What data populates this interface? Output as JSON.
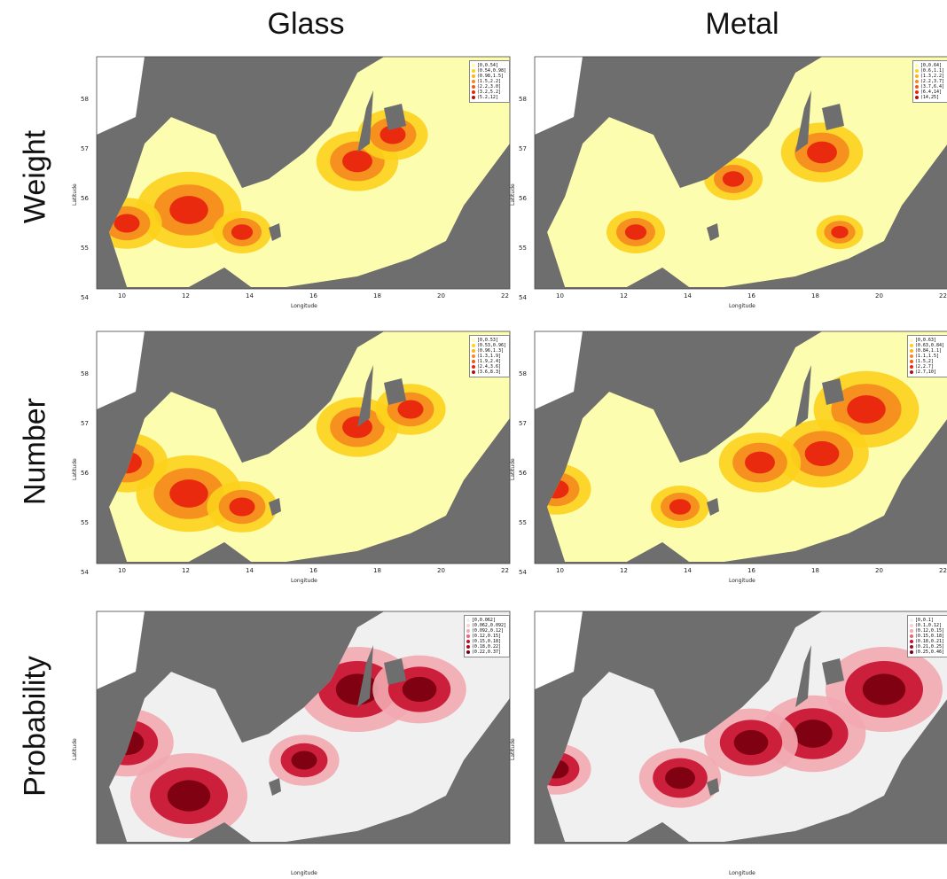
{
  "columns": {
    "glass": "Glass",
    "metal": "Metal"
  },
  "rows": {
    "weight": "Weight",
    "number": "Number",
    "probability": "Probability"
  },
  "axis": {
    "xlabel": "Longitude",
    "ylabel": "Latitude",
    "xticks": [
      "10",
      "12",
      "14",
      "16",
      "18",
      "20",
      "22"
    ],
    "yticks": [
      "54",
      "55",
      "56",
      "57",
      "58"
    ]
  },
  "colors": {
    "land": "#6e6e6e",
    "white_land": "#ffffff",
    "heat_low": "#fdfdb0",
    "heat_mid": "#fcd21c",
    "heat_orange": "#f58a1f",
    "heat_high": "#e8250e",
    "prob_low": "#f0f0f0",
    "prob_mid": "#f2a8b0",
    "prob_high": "#c8102e",
    "prob_max": "#7a0010"
  },
  "legends": {
    "glass_weight": [
      "[0,0.54]",
      "(0.54,0.98]",
      "(0.98,1.5]",
      "(1.5,2.2]",
      "(2.2,3.0]",
      "(3.2,5.2]",
      "(5.2,12]"
    ],
    "metal_weight": [
      "[0,0.64]",
      "(0.6,1.1]",
      "(1.3,2.2]",
      "(2.2,3.7]",
      "(3.7,6.4]",
      "(6.4,14]",
      "(14,25]"
    ],
    "glass_number": [
      "[0,0.53]",
      "(0.53,0.96]",
      "(0.96,1.3]",
      "(1.3,1.9]",
      "(1.9,2.4]",
      "(2.4,3.6]",
      "(3.6,8.3]"
    ],
    "metal_number": [
      "[0,0.63]",
      "(0.63,0.84]",
      "(0.84,1.1]",
      "(1.1,1.5]",
      "(1.5,2]",
      "(2,2.7]",
      "(2.7,10]"
    ],
    "glass_probability": [
      "[0,0.062]",
      "(0.062,0.092]",
      "(0.092,0.12]",
      "(0.12,0.15]",
      "(0.15,0.18]",
      "(0.18,0.22]",
      "(0.22,0.37]"
    ],
    "metal_probability": [
      "[0,0.1]",
      "(0.1,0.12]",
      "(0.12,0.15]",
      "(0.15,0.18]",
      "(0.18,0.21]",
      "(0.21,0.25]",
      "(0.25,0.46]"
    ]
  }
}
